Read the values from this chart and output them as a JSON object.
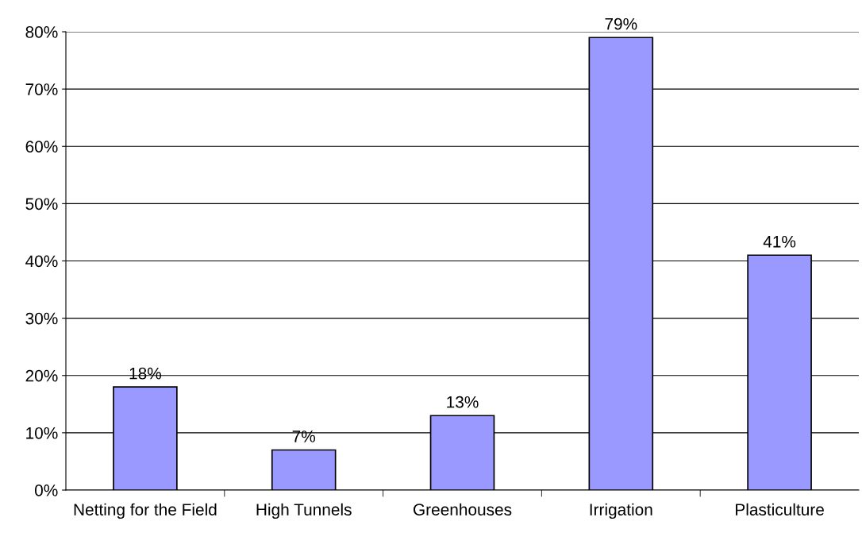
{
  "chart_data": {
    "type": "bar",
    "categories": [
      "Netting for the Field",
      "High Tunnels",
      "Greenhouses",
      "Irrigation",
      "Plasticulture"
    ],
    "values": [
      18,
      7,
      13,
      79,
      41
    ],
    "value_labels": [
      "18%",
      "7%",
      "13%",
      "79%",
      "41%"
    ],
    "color": "#9999ff",
    "ylim": [
      0,
      80
    ],
    "yticks": [
      {
        "value": 0,
        "label": "0%"
      },
      {
        "value": 10,
        "label": "10%"
      },
      {
        "value": 20,
        "label": "20%"
      },
      {
        "value": 30,
        "label": "30%"
      },
      {
        "value": 40,
        "label": "40%"
      },
      {
        "value": 50,
        "label": "50%"
      },
      {
        "value": 60,
        "label": "60%"
      },
      {
        "value": 70,
        "label": "70%"
      },
      {
        "value": 80,
        "label": "80%"
      }
    ],
    "grid": "y",
    "legend": false
  }
}
